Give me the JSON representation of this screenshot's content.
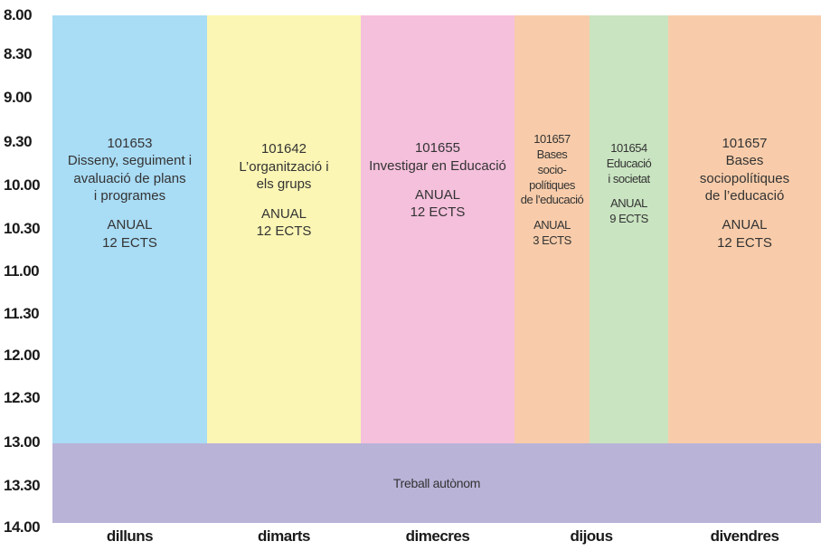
{
  "times": [
    "8.00",
    "8.30",
    "9.00",
    "9.30",
    "10.00",
    "10.30",
    "11.00",
    "11.30",
    "12.00",
    "12.30",
    "13.00",
    "13.30",
    "14.00"
  ],
  "days": [
    "dilluns",
    "dimarts",
    "dimecres",
    "dijous",
    "divendres"
  ],
  "blocks": {
    "dilluns": {
      "code": "101653",
      "lines": [
        "Disseny, seguiment i",
        "avaluació de plans",
        "i programes"
      ],
      "period": "ANUAL",
      "credits": "12 ECTS",
      "color": "#a9dcf5"
    },
    "dimarts": {
      "code": "101642",
      "lines": [
        "L’organització i",
        "els grups"
      ],
      "period": "ANUAL",
      "credits": "12 ECTS",
      "color": "#fbf6b4"
    },
    "dimecres": {
      "code": "101655",
      "lines": [
        "Investigar en Educació"
      ],
      "period": "ANUAL",
      "credits": "12 ECTS",
      "color": "#f5c0dc"
    },
    "dijous_1": {
      "code": "101657",
      "lines": [
        "Bases",
        "socio-",
        "polítiques",
        "de l’educació"
      ],
      "period": "ANUAL",
      "credits": "3 ECTS",
      "color": "#f8ccaa"
    },
    "dijous_2": {
      "code": "101654",
      "lines": [
        "Educació",
        "i societat"
      ],
      "period": "ANUAL",
      "credits": "9 ECTS",
      "color": "#c9e4c1"
    },
    "divendres": {
      "code": "101657",
      "lines": [
        "Bases",
        "sociopolítiques",
        "de l’educació"
      ],
      "period": "ANUAL",
      "credits": "12 ECTS",
      "color": "#f8ccaa"
    }
  },
  "afternoon": {
    "label": "Treball autònom",
    "color": "#b9b3d8"
  }
}
